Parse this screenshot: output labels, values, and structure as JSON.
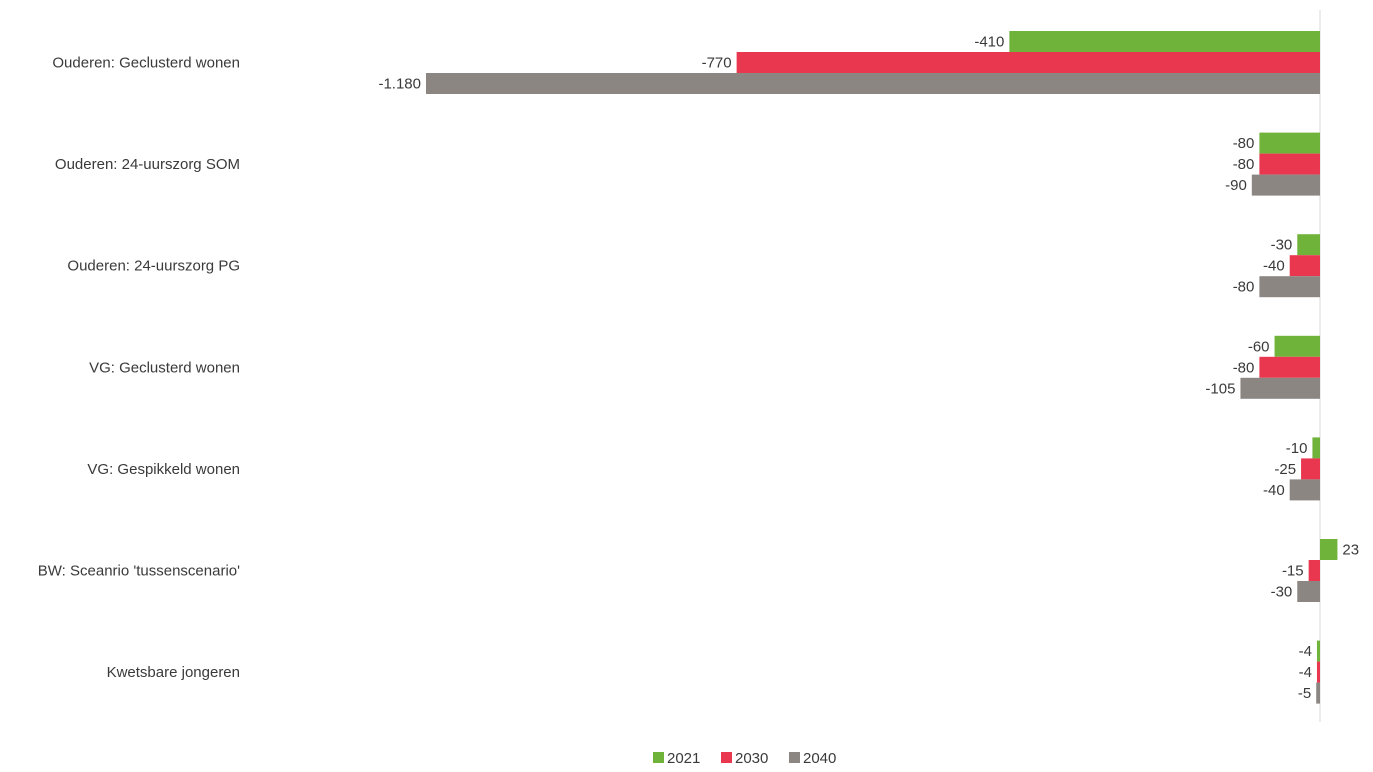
{
  "chart_data": {
    "type": "bar",
    "orientation": "horizontal",
    "title": "",
    "xlabel": "",
    "ylabel": "",
    "categories": [
      "Ouderen: Geclusterd wonen",
      "Ouderen: 24-uurszorg SOM",
      "Ouderen: 24-uurszorg PG",
      "VG: Geclusterd wonen",
      "VG: Gespikkeld wonen",
      "BW: Sceanrio 'tussenscenario'",
      "Kwetsbare jongeren"
    ],
    "series": [
      {
        "name": "2021",
        "color": "#70b33a",
        "values": [
          -410,
          -80,
          -30,
          -60,
          -10,
          23,
          -4
        ],
        "labels": [
          "-410",
          "-80",
          "-30",
          "-60",
          "-10",
          "23",
          "-4"
        ]
      },
      {
        "name": "2030",
        "color": "#e8374f",
        "values": [
          -770,
          -80,
          -40,
          -80,
          -25,
          -15,
          -4
        ],
        "labels": [
          "-770",
          "-80",
          "-40",
          "-80",
          "-25",
          "-15",
          "-4"
        ]
      },
      {
        "name": "2040",
        "color": "#8c8682",
        "values": [
          -1180,
          -90,
          -80,
          -105,
          -40,
          -30,
          -5
        ],
        "labels": [
          "-1.180",
          "-90",
          "-80",
          "-105",
          "-40",
          "-30",
          "-5"
        ]
      }
    ],
    "xlim": [
      -1180,
      60
    ],
    "grid": false,
    "legend_position": "bottom"
  }
}
